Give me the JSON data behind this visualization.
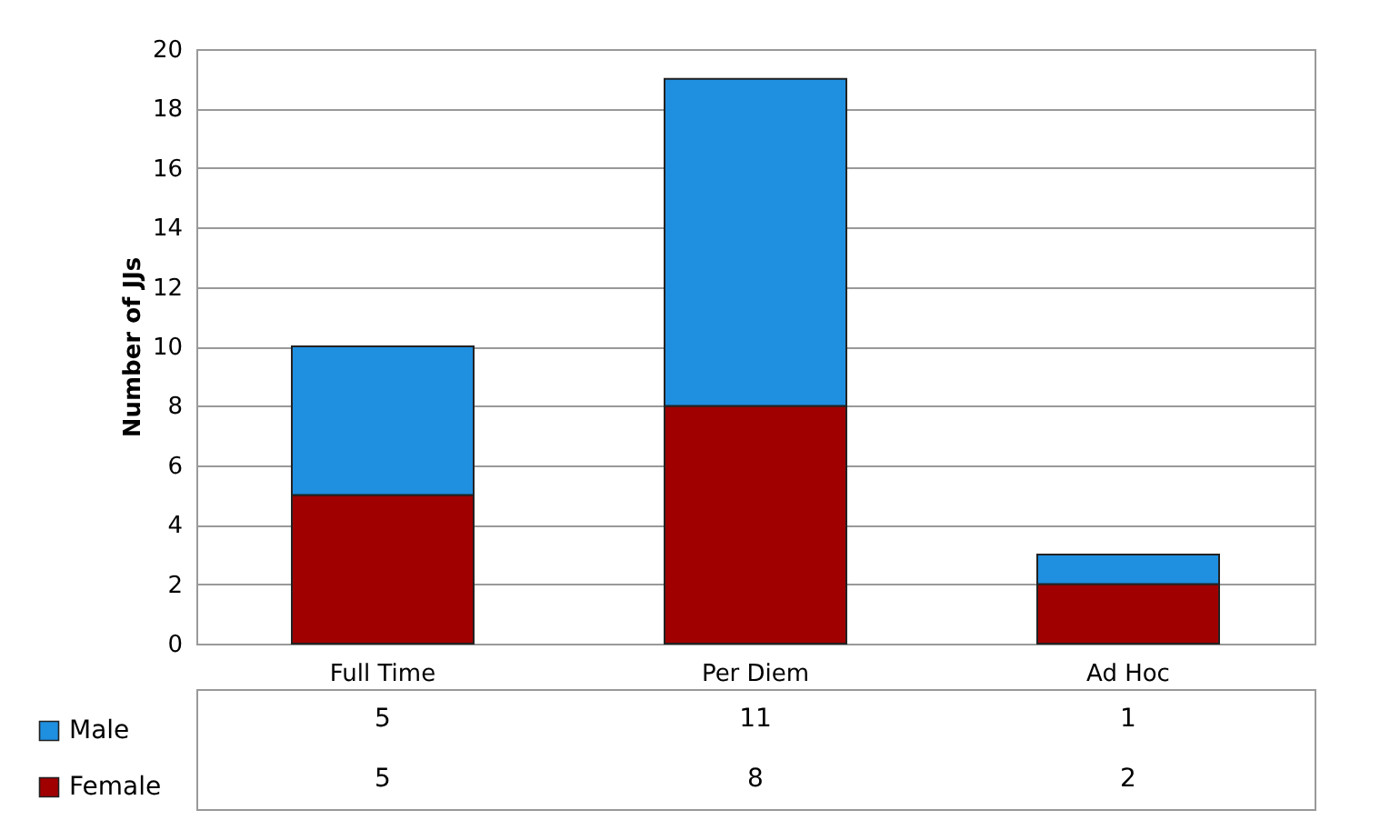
{
  "chart_data": {
    "type": "bar",
    "stacked": true,
    "ylabel": "Number of JJs",
    "categories": [
      "Full Time",
      "Per Diem",
      "Ad Hoc"
    ],
    "series": [
      {
        "name": "Female",
        "color": "#a00000",
        "values": [
          5,
          8,
          2
        ]
      },
      {
        "name": "Male",
        "color": "#1f8fe0",
        "values": [
          5,
          11,
          1
        ]
      }
    ],
    "ylim": [
      0,
      20
    ],
    "yticks": [
      0,
      2,
      4,
      6,
      8,
      10,
      12,
      14,
      16,
      18,
      20
    ],
    "grid": "y",
    "data_labels": true,
    "legend": "bottom left"
  }
}
